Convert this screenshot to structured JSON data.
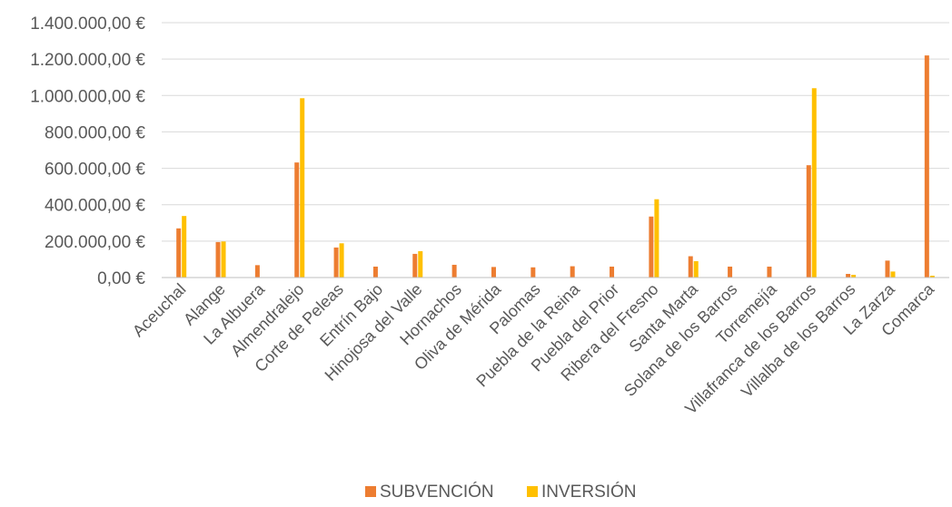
{
  "chart_data": {
    "type": "bar",
    "categories": [
      "Aceuchal",
      "Alange",
      "La Albuera",
      "Almendralejo",
      "Corte de Peleas",
      "Entrín Bajo",
      "Hinojosa del Valle",
      "Hornachos",
      "Oliva de Mérida",
      "Palomas",
      "Puebla de la Reina",
      "Puebla del Prior",
      "Ribera del Fresno",
      "Santa Marta",
      "Solana de los Barros",
      "Torremejía",
      "Villafranca de los Barros",
      "Villalba de los Barros",
      "La Zarza",
      "Comarca"
    ],
    "series": [
      {
        "name": "SUBVENCIÓN",
        "color": "#ED7D31",
        "values": [
          270000,
          195000,
          68000,
          632000,
          165000,
          60000,
          130000,
          70000,
          58000,
          56000,
          62000,
          60000,
          335000,
          117000,
          60000,
          60000,
          617000,
          20000,
          93000,
          1220000
        ]
      },
      {
        "name": "INVERSIÓN",
        "color": "#FFC000",
        "values": [
          338000,
          198000,
          0,
          985000,
          188000,
          0,
          145000,
          0,
          0,
          0,
          0,
          0,
          430000,
          90000,
          0,
          0,
          1040000,
          15000,
          33000,
          10000
        ]
      }
    ],
    "yticks": [
      "0,00 €",
      "200.000,00 €",
      "400.000,00 €",
      "600.000,00 €",
      "800.000,00 €",
      "1.000.000,00 €",
      "1.200.000,00 €",
      "1.400.000,00 €"
    ],
    "ylim": [
      0,
      1400000
    ],
    "grid": true,
    "legend_position": "bottom",
    "title": "",
    "xlabel": "",
    "ylabel": ""
  }
}
